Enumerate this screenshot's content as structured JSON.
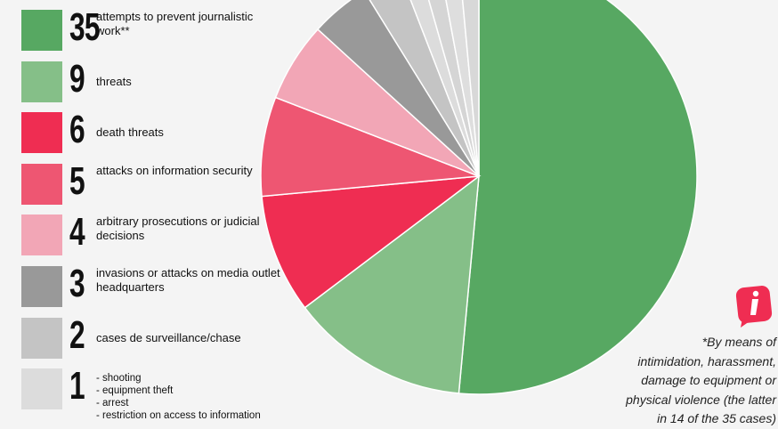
{
  "chart_data": {
    "type": "pie",
    "categories": [
      "attempts to prevent journalistic work**",
      "threats",
      "death threats",
      "attacks on information security",
      "arbitrary prosecutions or judicial decisions",
      "invasions or attacks on media outlet headquarters",
      "cases de surveillance/chase",
      "- shooting",
      "- equipment theft",
      "- arrest",
      "- restriction on access to information"
    ],
    "values": [
      35,
      9,
      6,
      5,
      4,
      3,
      2,
      1,
      1,
      1,
      1
    ],
    "colors": [
      "#57a862",
      "#85bf88",
      "#ef2d52",
      "#ee5672",
      "#f2a6b6",
      "#999999",
      "#c4c4c4",
      "#dcdcdc",
      "#d5d5d5",
      "#dedede",
      "#d8d8d8"
    ],
    "annotation": [
      "*By means of",
      "intimidation, harassment,",
      "damage to equipment or",
      "physical violence (the latter",
      "in 14 of the 35 cases)"
    ]
  }
}
